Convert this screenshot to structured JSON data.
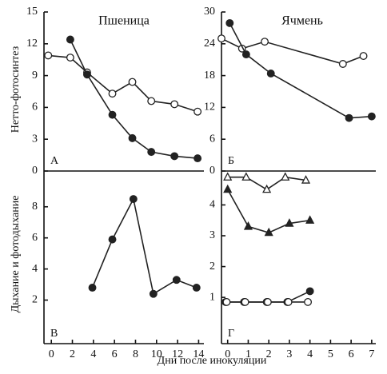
{
  "figure": {
    "xlabel": "Дни после инокуляции"
  },
  "chart_data": [
    {
      "type": "line",
      "title": "Пшеница",
      "panel": "А",
      "ylabel": "Нетто-фотосинтез",
      "xlim": [
        -0.7,
        14.5
      ],
      "ylim": [
        0,
        15
      ],
      "yticks": [
        0,
        3,
        6,
        9,
        12,
        15
      ],
      "series": [
        {
          "marker": "circle",
          "fill": "open",
          "color": "#222",
          "x": [
            -0.3,
            1.8,
            3.4,
            5.8,
            7.7,
            9.5,
            11.7,
            13.9
          ],
          "values": [
            10.9,
            10.7,
            9.3,
            7.3,
            8.4,
            6.6,
            6.3,
            5.6
          ]
        },
        {
          "marker": "circle",
          "fill": "filled",
          "color": "#222",
          "x": [
            1.8,
            3.4,
            5.8,
            7.7,
            9.5,
            11.7,
            13.9
          ],
          "values": [
            12.4,
            9.1,
            5.3,
            3.1,
            1.8,
            1.4,
            1.2
          ]
        }
      ]
    },
    {
      "type": "line",
      "title": "Ячмень",
      "panel": "Б",
      "xlim": [
        -0.3,
        7.2
      ],
      "ylim": [
        0,
        30
      ],
      "yticks": [
        0,
        6,
        12,
        18,
        24,
        30
      ],
      "series": [
        {
          "marker": "circle",
          "fill": "open",
          "color": "#222",
          "x": [
            -0.3,
            0.7,
            1.8,
            5.6,
            6.6
          ],
          "values": [
            25,
            23.1,
            24.4,
            20.2,
            21.7
          ]
        },
        {
          "marker": "circle",
          "fill": "filled",
          "color": "#222",
          "x": [
            0.1,
            0.9,
            2.1,
            5.9,
            7.0
          ],
          "values": [
            27.9,
            22,
            18.4,
            10,
            10.3
          ]
        }
      ]
    },
    {
      "type": "line",
      "panel": "В",
      "ylabel": "Дыхание и фотодыхание",
      "xlim": [
        -0.7,
        14.5
      ],
      "ylim": [
        -0.8,
        10.3
      ],
      "yticks": [
        2,
        4,
        6,
        8
      ],
      "xticks": [
        0,
        2,
        4,
        6,
        8,
        10,
        12,
        14
      ],
      "series": [
        {
          "marker": "circle",
          "fill": "filled",
          "color": "#222",
          "x": [
            3.9,
            5.8,
            7.8,
            9.7,
            11.9,
            13.8
          ],
          "values": [
            2.8,
            5.9,
            8.5,
            2.4,
            3.3,
            2.8
          ]
        }
      ]
    },
    {
      "type": "line",
      "panel": "Г",
      "xlim": [
        -0.3,
        7.2
      ],
      "ylim": [
        -0.5,
        5.1
      ],
      "yticks": [
        1,
        2,
        3,
        4
      ],
      "xticks": [
        0,
        1,
        2,
        3,
        4,
        5,
        6,
        7
      ],
      "series": [
        {
          "marker": "triangle",
          "fill": "open",
          "color": "#222",
          "x": [
            0,
            0.9,
            1.9,
            2.8,
            3.8
          ],
          "values": [
            4.9,
            4.9,
            4.5,
            4.9,
            4.8
          ]
        },
        {
          "marker": "triangle",
          "fill": "filled",
          "color": "#222",
          "x": [
            0,
            1,
            2,
            3,
            4
          ],
          "values": [
            4.5,
            3.3,
            3.1,
            3.4,
            3.5
          ]
        },
        {
          "marker": "circle",
          "fill": "filled",
          "color": "#222",
          "x": [
            -0.1,
            0.8,
            1.9,
            2.9,
            4.0
          ],
          "values": [
            0.85,
            0.85,
            0.85,
            0.85,
            1.2
          ]
        },
        {
          "marker": "circle",
          "fill": "open",
          "color": "#222",
          "x": [
            -0.05,
            0.85,
            1.95,
            2.95,
            3.9
          ],
          "values": [
            0.85,
            0.85,
            0.85,
            0.85,
            0.85
          ]
        }
      ]
    }
  ]
}
